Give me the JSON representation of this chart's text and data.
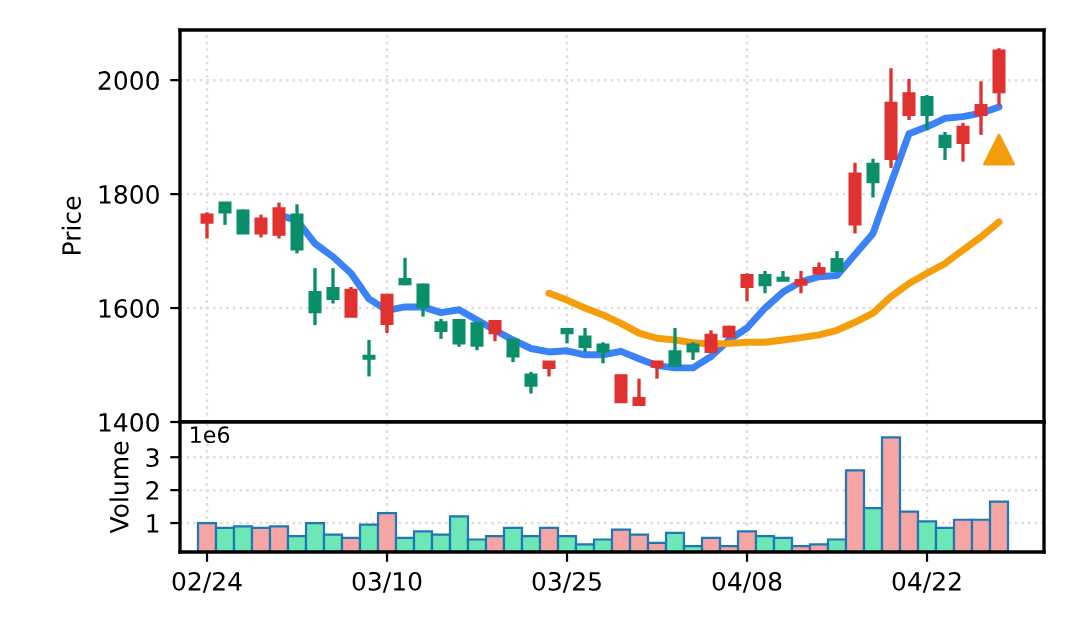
{
  "chart_data": [
    {
      "type": "candlestick",
      "ylabel": "Price",
      "ylim": [
        1400,
        2088
      ],
      "yticks": [
        1400,
        1600,
        1800,
        2000
      ],
      "grid": true,
      "tick_labels": "y",
      "categories": [
        null,
        null,
        null,
        null,
        null,
        null,
        null,
        null,
        null,
        null,
        null,
        null,
        null,
        null,
        null,
        null,
        null,
        null,
        null,
        null,
        null,
        null,
        null,
        null,
        null,
        null,
        null,
        null,
        null,
        null,
        null,
        null,
        null,
        null,
        null,
        null,
        null,
        null,
        null,
        null,
        null,
        null,
        null,
        null,
        null
      ],
      "ohlc": [
        [
          1750,
          1768,
          1722,
          1764
        ],
        [
          1785,
          1786,
          1746,
          1768
        ],
        [
          1771,
          1773,
          1730,
          1731
        ],
        [
          1731,
          1764,
          1724,
          1757
        ],
        [
          1729,
          1785,
          1722,
          1775
        ],
        [
          1764,
          1782,
          1696,
          1703
        ],
        [
          1628,
          1670,
          1570,
          1593
        ],
        [
          1635,
          1670,
          1608,
          1616
        ],
        [
          1585,
          1637,
          1585,
          1632
        ],
        [
          1516,
          1544,
          1480,
          1511
        ],
        [
          1572,
          1625,
          1556,
          1623
        ],
        [
          1651,
          1688,
          1640,
          1642
        ],
        [
          1641,
          1643,
          1585,
          1602
        ],
        [
          1575,
          1581,
          1546,
          1560
        ],
        [
          1579,
          1581,
          1532,
          1538
        ],
        [
          1573,
          1576,
          1526,
          1534
        ],
        [
          1556,
          1577,
          1542,
          1577
        ],
        [
          1544,
          1546,
          1505,
          1515
        ],
        [
          1483,
          1488,
          1450,
          1464
        ],
        [
          1495,
          1507,
          1480,
          1506
        ],
        [
          1563,
          1565,
          1538,
          1556
        ],
        [
          1550,
          1565,
          1523,
          1532
        ],
        [
          1536,
          1540,
          1503,
          1524
        ],
        [
          1435,
          1483,
          1434,
          1482
        ],
        [
          1430,
          1476,
          1430,
          1442
        ],
        [
          1497,
          1507,
          1476,
          1506
        ],
        [
          1524,
          1565,
          1497,
          1499
        ],
        [
          1536,
          1540,
          1509,
          1524
        ],
        [
          1523,
          1561,
          1521,
          1553
        ],
        [
          1550,
          1569,
          1548,
          1567
        ],
        [
          1637,
          1661,
          1612,
          1658
        ],
        [
          1658,
          1665,
          1626,
          1640
        ],
        [
          1653,
          1665,
          1647,
          1648
        ],
        [
          1641,
          1665,
          1626,
          1649
        ],
        [
          1661,
          1680,
          1658,
          1670
        ],
        [
          1686,
          1700,
          1663,
          1665
        ],
        [
          1747,
          1855,
          1731,
          1836
        ],
        [
          1853,
          1862,
          1794,
          1821
        ],
        [
          1862,
          2021,
          1846,
          1960
        ],
        [
          1939,
          2002,
          1930,
          1977
        ],
        [
          1970,
          1974,
          1912,
          1939
        ],
        [
          1902,
          1909,
          1860,
          1883
        ],
        [
          1890,
          1925,
          1857,
          1918
        ],
        [
          1939,
          1998,
          1904,
          1956
        ],
        [
          1979,
          2056,
          1956,
          2052
        ]
      ],
      "colors": [
        "#e03131",
        "#0b8f6b",
        "#0b8f6b",
        "#e03131",
        "#e03131",
        "#0b8f6b",
        "#0b8f6b",
        "#0b8f6b",
        "#e03131",
        "#0b8f6b",
        "#e03131",
        "#0b8f6b",
        "#0b8f6b",
        "#0b8f6b",
        "#0b8f6b",
        "#0b8f6b",
        "#e03131",
        "#0b8f6b",
        "#0b8f6b",
        "#e03131",
        "#0b8f6b",
        "#0b8f6b",
        "#0b8f6b",
        "#e03131",
        "#e03131",
        "#e03131",
        "#0b8f6b",
        "#0b8f6b",
        "#e03131",
        "#e03131",
        "#e03131",
        "#0b8f6b",
        "#0b8f6b",
        "#e03131",
        "#e03131",
        "#0b8f6b",
        "#e03131",
        "#0b8f6b",
        "#e03131",
        "#e03131",
        "#0b8f6b",
        "#0b8f6b",
        "#e03131",
        "#e03131",
        "#e03131"
      ],
      "series": [
        {
          "type": "line",
          "color": "#3b82f6",
          "values": [
            null,
            null,
            null,
            null,
            1763,
            1754,
            1713,
            1690,
            1661,
            1616,
            1596,
            1602,
            1602,
            1592,
            1597,
            1579,
            1561,
            1544,
            1529,
            1523,
            1525,
            1518,
            1518,
            1524,
            1511,
            1499,
            1495,
            1495,
            1515,
            1544,
            1565,
            1600,
            1628,
            1646,
            1655,
            1657,
            1694,
            1731,
            1819,
            1906,
            1918,
            1933,
            1936,
            1942,
            1953
          ]
        },
        {
          "type": "line",
          "color": "#f59e0b",
          "values": [
            null,
            null,
            null,
            null,
            null,
            null,
            null,
            null,
            null,
            null,
            null,
            null,
            null,
            null,
            null,
            null,
            null,
            null,
            null,
            1626,
            1614,
            1600,
            1588,
            1573,
            1556,
            1547,
            1544,
            1539,
            1537,
            1538,
            1540,
            1540,
            1544,
            1548,
            1553,
            1561,
            1575,
            1591,
            1620,
            1643,
            1661,
            1678,
            1702,
            1725,
            1751
          ]
        },
        {
          "type": "scatter",
          "color": "#f59e0b",
          "marker": "triangle",
          "values": [
            null,
            null,
            null,
            null,
            null,
            null,
            null,
            null,
            null,
            null,
            null,
            null,
            null,
            null,
            null,
            null,
            null,
            null,
            null,
            null,
            null,
            null,
            null,
            null,
            null,
            null,
            null,
            null,
            null,
            null,
            null,
            null,
            null,
            null,
            null,
            null,
            null,
            null,
            null,
            null,
            null,
            null,
            null,
            null,
            1878
          ]
        }
      ]
    },
    {
      "type": "bar",
      "ylabel": "Volume",
      "annotations": [
        "1e6"
      ],
      "ylim": [
        0.12,
        4.07
      ],
      "yticks": [
        1,
        2,
        3
      ],
      "grid": true,
      "categories": [
        "02/24",
        null,
        null,
        null,
        null,
        null,
        null,
        null,
        null,
        null,
        "03/10",
        null,
        null,
        null,
        null,
        null,
        null,
        null,
        null,
        null,
        "03/25",
        null,
        null,
        null,
        null,
        null,
        null,
        null,
        null,
        null,
        "04/08",
        null,
        null,
        null,
        null,
        null,
        null,
        null,
        null,
        null,
        "04/22",
        null,
        null,
        null,
        null
      ],
      "values": [
        1.0,
        0.85,
        0.9,
        0.85,
        0.9,
        0.6,
        1.0,
        0.65,
        0.55,
        0.95,
        1.3,
        0.55,
        0.75,
        0.65,
        1.2,
        0.5,
        0.6,
        0.85,
        0.6,
        0.85,
        0.6,
        0.35,
        0.5,
        0.8,
        0.65,
        0.4,
        0.7,
        0.3,
        0.55,
        0.3,
        0.75,
        0.6,
        0.55,
        0.3,
        0.35,
        0.5,
        2.6,
        1.45,
        3.6,
        1.35,
        1.05,
        0.85,
        1.1,
        1.1,
        1.65
      ],
      "colors": [
        "#f6a5a5",
        "#6ee7b7",
        "#6ee7b7",
        "#f6a5a5",
        "#f6a5a5",
        "#6ee7b7",
        "#6ee7b7",
        "#6ee7b7",
        "#f6a5a5",
        "#6ee7b7",
        "#f6a5a5",
        "#6ee7b7",
        "#6ee7b7",
        "#6ee7b7",
        "#6ee7b7",
        "#6ee7b7",
        "#f6a5a5",
        "#6ee7b7",
        "#6ee7b7",
        "#f6a5a5",
        "#6ee7b7",
        "#6ee7b7",
        "#6ee7b7",
        "#f6a5a5",
        "#f6a5a5",
        "#f6a5a5",
        "#6ee7b7",
        "#6ee7b7",
        "#f6a5a5",
        "#f6a5a5",
        "#f6a5a5",
        "#6ee7b7",
        "#6ee7b7",
        "#f6a5a5",
        "#f6a5a5",
        "#6ee7b7",
        "#f6a5a5",
        "#6ee7b7",
        "#f6a5a5",
        "#f6a5a5",
        "#6ee7b7",
        "#6ee7b7",
        "#f6a5a5",
        "#f6a5a5",
        "#f6a5a5"
      ]
    }
  ]
}
